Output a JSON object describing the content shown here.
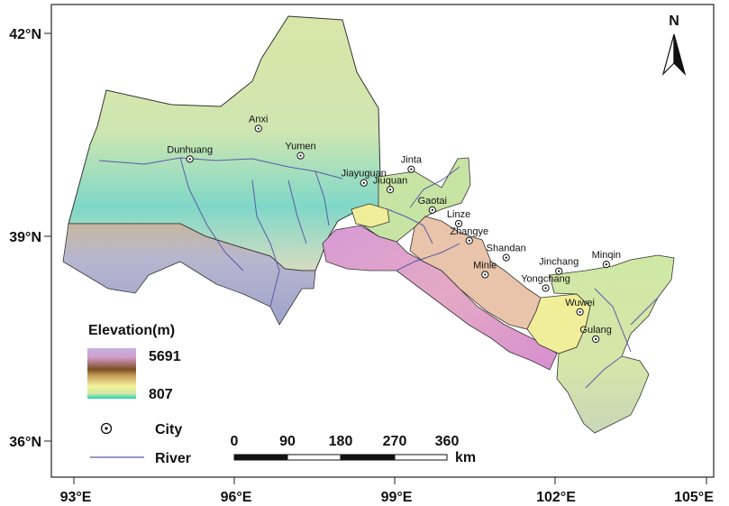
{
  "axes": {
    "x_ticks": [
      "93°E",
      "96°E",
      "99°E",
      "102°E",
      "105°E"
    ],
    "y_ticks": [
      "42°N",
      "39°N",
      "36°N"
    ]
  },
  "north_arrow": {
    "label": "N"
  },
  "cities": [
    {
      "name": "Anxi",
      "lon": 96.5,
      "lat": 40.6
    },
    {
      "name": "Dunhuang",
      "lon": 95.2,
      "lat": 40.15
    },
    {
      "name": "Yumen",
      "lon": 97.3,
      "lat": 40.2
    },
    {
      "name": "Jinta",
      "lon": 99.4,
      "lat": 40.0
    },
    {
      "name": "Jiayuguan",
      "lon": 98.5,
      "lat": 39.8
    },
    {
      "name": "Jiuquan",
      "lon": 99.0,
      "lat": 39.7
    },
    {
      "name": "Gaotai",
      "lon": 99.8,
      "lat": 39.4
    },
    {
      "name": "Linze",
      "lon": 100.3,
      "lat": 39.2
    },
    {
      "name": "Zhangye",
      "lon": 100.5,
      "lat": 38.95
    },
    {
      "name": "Minle",
      "lon": 100.8,
      "lat": 38.45
    },
    {
      "name": "Shandan",
      "lon": 101.2,
      "lat": 38.7
    },
    {
      "name": "Jinchang",
      "lon": 102.2,
      "lat": 38.5
    },
    {
      "name": "Minqin",
      "lon": 103.1,
      "lat": 38.6
    },
    {
      "name": "Yongchang",
      "lon": 101.95,
      "lat": 38.25
    },
    {
      "name": "Wuwei",
      "lon": 102.6,
      "lat": 37.9
    },
    {
      "name": "Gulang",
      "lon": 102.9,
      "lat": 37.5
    }
  ],
  "legend": {
    "title": "Elevation(m)",
    "max_label": "5691",
    "min_label": "807",
    "gradient_colors": [
      "#b9a2d0",
      "#c79ec6",
      "#8a5a2a",
      "#c49b5a",
      "#f2ef9a",
      "#cfe8a5",
      "#2fd0b8"
    ],
    "city_label": "City",
    "river_label": "River",
    "river_color": "#5a5aa8"
  },
  "scale_bar": {
    "ticks": [
      "0",
      "90",
      "180",
      "270",
      "360"
    ],
    "unit": "km"
  }
}
